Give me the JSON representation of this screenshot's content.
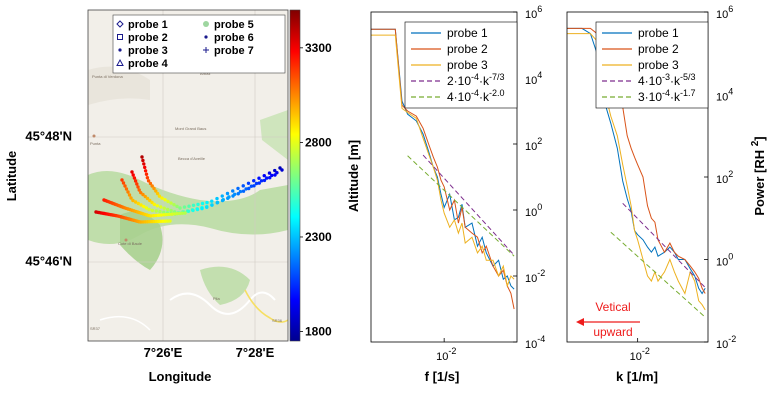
{
  "map_panel": {
    "xlabel": "Longitude",
    "ylabel": "Latitude",
    "x_ticks": [
      "7°26'E",
      "7°28'E"
    ],
    "y_ticks": [
      "45°48'N",
      "45°46'N"
    ],
    "attribution": "©OpenStreetMap contributors",
    "legend": [
      {
        "label": "probe 1",
        "marker": "diamond",
        "color": "#1a1a8c"
      },
      {
        "label": "probe 2",
        "marker": "square",
        "color": "#1a1a8c"
      },
      {
        "label": "probe 3",
        "marker": "dot",
        "color": "#1a1a8c"
      },
      {
        "label": "probe 4",
        "marker": "triangle",
        "color": "#1a1a8c"
      },
      {
        "label": "probe 5",
        "marker": "circle",
        "color": "#9ed6a0"
      },
      {
        "label": "probe 6",
        "marker": "dot",
        "color": "#1a1a8c"
      },
      {
        "label": "probe 7",
        "marker": "plus",
        "color": "#1a1a8c"
      }
    ],
    "map_labels": [
      "Punta di Verdona",
      "Mont Grand Baus",
      "Becca d'Aveille",
      "Punta",
      "Cote di Baule",
      "Pila",
      "Arbaz",
      "SR37",
      "SR36"
    ]
  },
  "colorbar": {
    "label": "Altitude [m]",
    "ticks": [
      "3300",
      "2800",
      "2300",
      "1800"
    ],
    "range": [
      1750,
      3500
    ],
    "colormap": "jet"
  },
  "chart_data": [
    {
      "type": "line",
      "xlabel": "f [1/s]",
      "ylabel": "",
      "xscale": "log",
      "yscale": "log",
      "x_ticks": [
        "10^-2"
      ],
      "y_ticks": [
        "10^6",
        "10^4",
        "10^2",
        "10^0",
        "10^-2",
        "10^-4"
      ],
      "ylim": [
        0.0001,
        1000000
      ],
      "xlim": [
        0.0009,
        0.11
      ],
      "legend_position": "top-right",
      "series": [
        {
          "name": "probe 1",
          "color": "#0072bd",
          "style": "solid",
          "x": [
            0.0009,
            0.0015,
            0.002,
            0.0025,
            0.003,
            0.004,
            0.005,
            0.006,
            0.007,
            0.008,
            0.009,
            0.01,
            0.012,
            0.014,
            0.016,
            0.018,
            0.02,
            0.025,
            0.03,
            0.035,
            0.04,
            0.05,
            0.06,
            0.07,
            0.08,
            0.09,
            0.1
          ],
          "y": [
            300000,
            300000,
            300000,
            2000,
            800,
            500,
            200,
            60,
            20,
            10,
            3,
            1.2,
            3,
            0.5,
            0.6,
            1.5,
            0.3,
            0.4,
            0.08,
            0.15,
            0.05,
            0.02,
            0.03,
            0.008,
            0.01,
            0.005,
            0.004
          ]
        },
        {
          "name": "probe 2",
          "color": "#d95319",
          "style": "solid",
          "x": [
            0.0009,
            0.0015,
            0.002,
            0.0025,
            0.003,
            0.004,
            0.005,
            0.006,
            0.007,
            0.008,
            0.009,
            0.01,
            0.012,
            0.014,
            0.016,
            0.018,
            0.02,
            0.025,
            0.03,
            0.035,
            0.04,
            0.05,
            0.06,
            0.07,
            0.08,
            0.09,
            0.1
          ],
          "y": [
            300000,
            300000,
            300000,
            1500,
            1000,
            700,
            300,
            100,
            40,
            20,
            8,
            5,
            1,
            2,
            0.4,
            1.2,
            0.3,
            0.2,
            0.15,
            0.05,
            0.08,
            0.02,
            0.01,
            0.015,
            0.005,
            0.003,
            0.001
          ]
        },
        {
          "name": "probe 3",
          "color": "#edb120",
          "style": "solid",
          "x": [
            0.0009,
            0.0015,
            0.002,
            0.0025,
            0.003,
            0.004,
            0.005,
            0.006,
            0.007,
            0.008,
            0.009,
            0.01,
            0.012,
            0.014,
            0.016,
            0.018,
            0.02,
            0.025,
            0.03,
            0.035,
            0.04,
            0.05,
            0.06,
            0.07,
            0.08,
            0.09,
            0.1
          ],
          "y": [
            200000,
            200000,
            200000,
            1200,
            900,
            600,
            150,
            50,
            20,
            8,
            2,
            0.8,
            0.3,
            0.5,
            0.2,
            0.4,
            0.1,
            0.15,
            0.05,
            0.08,
            0.03,
            0.03,
            0.01,
            0.02,
            0.005,
            0.01,
            0.008
          ]
        },
        {
          "name": "2·10^-4·k^-7/3",
          "color": "#7e2f8e",
          "style": "dashed",
          "x": [
            0.005,
            0.1
          ],
          "y": [
            46,
            0.043
          ]
        },
        {
          "name": "4·10^-4·k^-2.0",
          "color": "#77ac30",
          "style": "dashed",
          "x": [
            0.003,
            0.1
          ],
          "y": [
            44,
            0.04
          ]
        }
      ],
      "legend_labels": [
        {
          "text": "probe 1"
        },
        {
          "text": "probe 2"
        },
        {
          "text": "probe 3"
        },
        {
          "text": "2·10",
          "exp": "-4",
          "mid": "·k",
          "exp2": "-7/3"
        },
        {
          "text": "4·10",
          "exp": "-4",
          "mid": "·k",
          "exp2": "-2.0"
        }
      ]
    },
    {
      "type": "line",
      "xlabel": "k [1/m]",
      "ylabel": "Power [RH   2]",
      "xscale": "log",
      "yscale": "log",
      "x_ticks": [
        "10^-2"
      ],
      "y_ticks": [
        "10^6",
        "10^4",
        "10^2",
        "10^0",
        "10^-2"
      ],
      "ylim": [
        0.01,
        1000000
      ],
      "xlim": [
        0.0009,
        0.11
      ],
      "legend_position": "top-right",
      "annotation": "Vetical upward",
      "series": [
        {
          "name": "probe 1",
          "color": "#0072bd",
          "style": "solid",
          "x": [
            0.0009,
            0.0015,
            0.002,
            0.0025,
            0.003,
            0.004,
            0.005,
            0.006,
            0.007,
            0.008,
            0.009,
            0.01,
            0.012,
            0.014,
            0.016,
            0.018,
            0.02,
            0.025,
            0.03,
            0.035,
            0.04,
            0.05,
            0.06,
            0.07,
            0.08,
            0.09,
            0.1
          ],
          "y": [
            400000,
            400000,
            300000,
            100000,
            10000,
            2000,
            500,
            80,
            30,
            15,
            5,
            4,
            3,
            2,
            1.5,
            2,
            1.2,
            1.5,
            2,
            1.5,
            1,
            1,
            0.6,
            0.4,
            0.2,
            0.15,
            0.2
          ]
        },
        {
          "name": "probe 2",
          "color": "#d95319",
          "style": "solid",
          "x": [
            0.0009,
            0.0015,
            0.002,
            0.0025,
            0.003,
            0.004,
            0.005,
            0.006,
            0.007,
            0.008,
            0.009,
            0.01,
            0.012,
            0.014,
            0.016,
            0.018,
            0.02,
            0.025,
            0.03,
            0.035,
            0.04,
            0.05,
            0.06,
            0.07,
            0.08,
            0.09,
            0.1
          ],
          "y": [
            400000,
            400000,
            400000,
            300000,
            100000,
            30000,
            20000,
            5000,
            1000,
            500,
            300,
            200,
            100,
            20,
            10,
            8,
            3,
            1.5,
            2.5,
            1.5,
            1.2,
            1,
            0.7,
            0.5,
            0.35,
            0.2,
            0.15
          ]
        },
        {
          "name": "probe 3",
          "color": "#edb120",
          "style": "solid",
          "x": [
            0.0009,
            0.0015,
            0.002,
            0.0025,
            0.003,
            0.004,
            0.005,
            0.006,
            0.007,
            0.008,
            0.009,
            0.01,
            0.012,
            0.014,
            0.016,
            0.018,
            0.02,
            0.025,
            0.03,
            0.035,
            0.04,
            0.05,
            0.06,
            0.07,
            0.08,
            0.09,
            0.1
          ],
          "y": [
            300000,
            300000,
            300000,
            200000,
            20000,
            3000,
            1000,
            200,
            60,
            20,
            5,
            3,
            1,
            0.4,
            0.3,
            0.5,
            0.3,
            0.5,
            1,
            0.5,
            0.3,
            0.15,
            0.5,
            0.3,
            0.1,
            0.08,
            0.06
          ]
        },
        {
          "name": "4·10^-3·k^-5/3",
          "color": "#7e2f8e",
          "style": "dashed",
          "x": [
            0.006,
            0.1
          ],
          "y": [
            23,
            0.21
          ]
        },
        {
          "name": "3·10^-4·k^-1.7",
          "color": "#77ac30",
          "style": "dashed",
          "x": [
            0.004,
            0.1
          ],
          "y": [
            4.6,
            0.04
          ]
        }
      ],
      "legend_labels": [
        {
          "text": "probe 1"
        },
        {
          "text": "probe 2"
        },
        {
          "text": "probe 3"
        },
        {
          "text": "4·10",
          "exp": "-3",
          "mid": "·k",
          "exp2": "-5/3"
        },
        {
          "text": "3·10",
          "exp": "-4",
          "mid": "·k",
          "exp2": "-1.7"
        }
      ]
    }
  ]
}
